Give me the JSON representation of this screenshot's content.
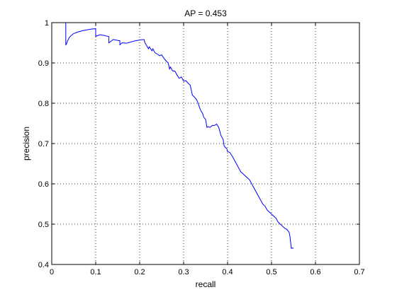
{
  "chart_data": {
    "type": "line",
    "title": "AP = 0.453",
    "xlabel": "recall",
    "ylabel": "precision",
    "xlim": [
      0,
      0.7
    ],
    "ylim": [
      0.4,
      1
    ],
    "xticks": [
      0,
      0.1,
      0.2,
      0.3,
      0.4,
      0.5,
      0.6,
      0.7
    ],
    "xtick_labels": [
      "0",
      "0.1",
      "0.2",
      "0.3",
      "0.4",
      "0.5",
      "0.6",
      "0.7"
    ],
    "yticks": [
      0.4,
      0.5,
      0.6,
      0.7,
      0.8,
      0.9,
      1
    ],
    "ytick_labels": [
      "0.4",
      "0.5",
      "0.6",
      "0.7",
      "0.8",
      "0.9",
      "1"
    ],
    "grid": true,
    "line_color": "#0000ff",
    "series": [
      {
        "x": [
          0.032,
          0.032,
          0.033,
          0.036,
          0.04,
          0.045,
          0.05,
          0.06,
          0.07,
          0.08,
          0.09,
          0.1,
          0.1,
          0.11,
          0.12,
          0.13,
          0.13,
          0.14,
          0.15,
          0.155,
          0.155,
          0.16,
          0.17,
          0.18,
          0.19,
          0.2,
          0.21,
          0.212,
          0.215,
          0.22,
          0.222,
          0.225,
          0.228,
          0.23,
          0.235,
          0.24,
          0.245,
          0.25,
          0.255,
          0.26,
          0.265,
          0.268,
          0.27,
          0.275,
          0.28,
          0.285,
          0.29,
          0.295,
          0.3,
          0.305,
          0.31,
          0.315,
          0.32,
          0.325,
          0.33,
          0.333,
          0.336,
          0.34,
          0.343,
          0.346,
          0.35,
          0.353,
          0.356,
          0.36,
          0.365,
          0.37,
          0.375,
          0.38,
          0.385,
          0.39,
          0.392,
          0.395,
          0.398,
          0.4,
          0.405,
          0.41,
          0.415,
          0.42,
          0.425,
          0.43,
          0.435,
          0.44,
          0.445,
          0.45,
          0.455,
          0.46,
          0.465,
          0.47,
          0.475,
          0.48,
          0.485,
          0.49,
          0.495,
          0.5,
          0.505,
          0.51,
          0.515,
          0.52,
          0.525,
          0.53,
          0.535,
          0.54,
          0.542,
          0.545,
          0.548,
          0.55
        ],
        "y": [
          1.0,
          0.945,
          0.946,
          0.955,
          0.963,
          0.969,
          0.973,
          0.977,
          0.98,
          0.982,
          0.984,
          0.985,
          0.966,
          0.97,
          0.968,
          0.965,
          0.95,
          0.958,
          0.956,
          0.955,
          0.945,
          0.95,
          0.949,
          0.952,
          0.955,
          0.957,
          0.958,
          0.95,
          0.945,
          0.935,
          0.94,
          0.935,
          0.93,
          0.935,
          0.925,
          0.922,
          0.918,
          0.92,
          0.912,
          0.905,
          0.9,
          0.885,
          0.89,
          0.88,
          0.88,
          0.87,
          0.862,
          0.865,
          0.855,
          0.856,
          0.85,
          0.845,
          0.82,
          0.815,
          0.808,
          0.8,
          0.79,
          0.78,
          0.775,
          0.765,
          0.76,
          0.74,
          0.742,
          0.74,
          0.745,
          0.745,
          0.748,
          0.74,
          0.72,
          0.71,
          0.695,
          0.69,
          0.688,
          0.68,
          0.678,
          0.67,
          0.66,
          0.65,
          0.64,
          0.63,
          0.625,
          0.62,
          0.615,
          0.61,
          0.6,
          0.59,
          0.58,
          0.57,
          0.56,
          0.55,
          0.545,
          0.535,
          0.53,
          0.525,
          0.52,
          0.515,
          0.505,
          0.5,
          0.495,
          0.49,
          0.487,
          0.48,
          0.47,
          0.44,
          0.441,
          0.44
        ]
      }
    ]
  }
}
